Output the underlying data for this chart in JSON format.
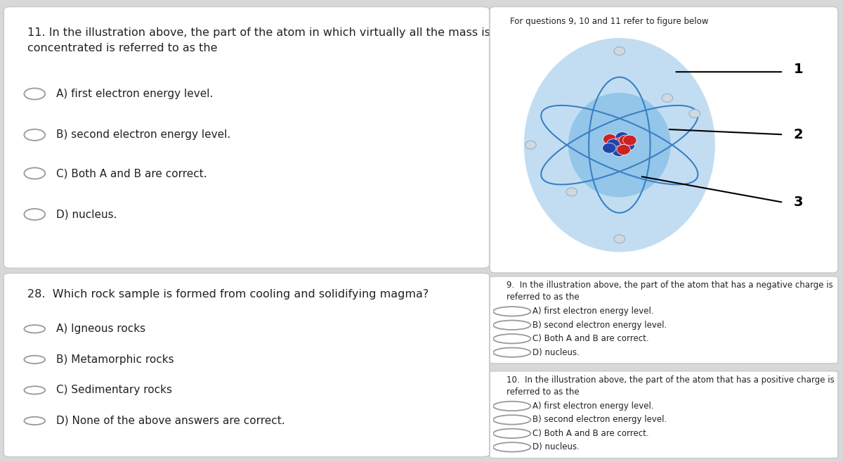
{
  "bg_color": "#d8d8d8",
  "panel_color": "#ffffff",
  "panel_border": "#cccccc",
  "text_color": "#222222",
  "radio_color": "#999999",
  "q11_question": "11. In the illustration above, the part of the atom in which virtually all the mass is\nconcentrated is referred to as the",
  "q11_options": [
    "A) first electron energy level.",
    "B) second electron energy level.",
    "C) Both A and B are correct.",
    "D) nucleus."
  ],
  "q28_question": "28.  Which rock sample is formed from cooling and solidifying magma?",
  "q28_options": [
    "A) Igneous rocks",
    "B) Metamorphic rocks",
    "C) Sedimentary rocks",
    "D) None of the above answers are correct."
  ],
  "figure_label": "For questions 9, 10 and 11 refer to figure below",
  "q9_question": "9.  In the illustration above, the part of the atom that has a negative charge is\nreferred to as the",
  "q9_options": [
    "A) first electron energy level.",
    "B) second electron energy level.",
    "C) Both A and B are correct.",
    "D) nucleus."
  ],
  "q10_question": "10.  In the illustration above, the part of the atom that has a positive charge is\nreferred to as the",
  "q10_options": [
    "A) first electron energy level.",
    "B) second electron energy level.",
    "C) Both A and B are correct.",
    "D) nucleus."
  ],
  "atom_outer_color": "#b8d8f0",
  "atom_inner_color": "#8ec4e8",
  "atom_orbit_color": "#3a80c4",
  "nucleus_red": "#cc2222",
  "nucleus_blue": "#2244aa"
}
